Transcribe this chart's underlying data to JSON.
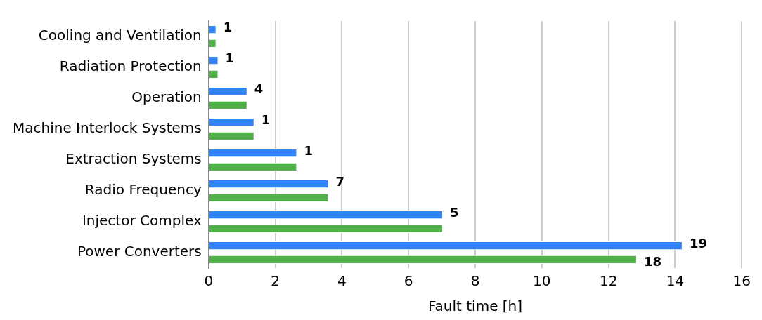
{
  "chart_data": {
    "type": "bar",
    "orientation": "horizontal",
    "xlabel": "Fault time [h]",
    "categories": [
      "Cooling and Ventilation",
      "Radiation Protection",
      "Operation",
      "Machine Interlock Systems",
      "Extraction Systems",
      "Radio Frequency",
      "Injector Complex",
      "Power Converters"
    ],
    "series": [
      {
        "color": "#3284f5",
        "values": [
          0.23,
          0.29,
          1.16,
          1.37,
          2.65,
          3.6,
          7.03,
          14.22
        ]
      },
      {
        "color": "#52b04a",
        "values": [
          0.23,
          0.29,
          1.16,
          1.37,
          2.65,
          3.6,
          7.03,
          12.85
        ]
      }
    ],
    "annotations": [
      {
        "text": "1",
        "x": 0.23,
        "y": "Cooling and Ventilation"
      },
      {
        "text": "1",
        "x": 0.29,
        "y": "Radiation Protection"
      },
      {
        "text": "4",
        "x": 1.16,
        "y": "Operation"
      },
      {
        "text": "1",
        "x": 1.37,
        "y": "Machine Interlock Systems"
      },
      {
        "text": "1",
        "x": 2.65,
        "y": "Extraction Systems"
      },
      {
        "text": "7",
        "x": 3.6,
        "y": "Radio Frequency"
      },
      {
        "text": "5",
        "x": 7.03,
        "y": "Injector Complex"
      },
      {
        "text": "19",
        "x": 14.22,
        "y": "Power Converters"
      },
      {
        "text": "18",
        "x": 12.85,
        "y": "Power Converters"
      }
    ],
    "xlim": [
      0,
      16
    ],
    "xticks": [
      0,
      2,
      4,
      6,
      8,
      10,
      12,
      14,
      16
    ],
    "grid": "x",
    "legend": false
  }
}
